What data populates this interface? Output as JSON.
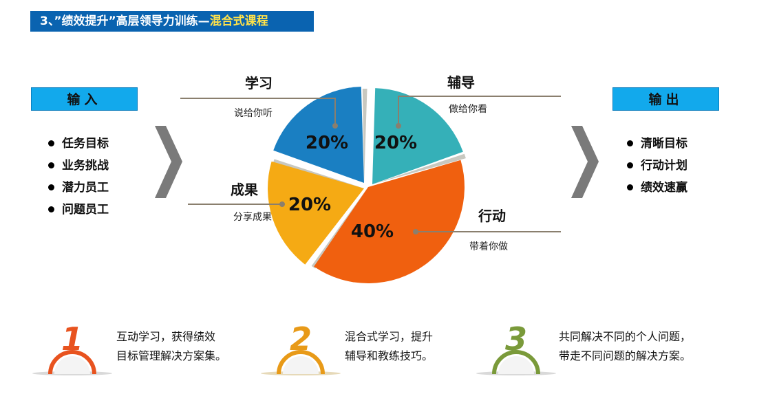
{
  "title": {
    "prefix": "3、”绩效提升”高层领导力训练—",
    "highlight": "混合式课程"
  },
  "input": {
    "label": "输入",
    "items": [
      "任务目标",
      "业务挑战",
      "潜力员工",
      "问题员工"
    ]
  },
  "output": {
    "label": "输出",
    "items": [
      "清晰目标",
      "行动计划",
      "绩效速赢"
    ]
  },
  "chart_data": {
    "type": "pie",
    "slices": [
      {
        "label": "辅导",
        "sub": "做给你看",
        "value": 20,
        "pct": "20%",
        "color": "#35b0b8"
      },
      {
        "label": "行动",
        "sub": "带着你做",
        "value": 40,
        "pct": "40%",
        "color": "#f0600f"
      },
      {
        "label": "成果",
        "sub": "分享成果",
        "value": 20,
        "pct": "20%",
        "color": "#f5aa14"
      },
      {
        "label": "学习",
        "sub": "说给你听",
        "value": 20,
        "pct": "20%",
        "color": "#1a7fc2"
      }
    ]
  },
  "bottom": [
    {
      "num": "1",
      "color": "#e8531f",
      "line1": "互动学习，获得绩效",
      "line2": "目标管理解决方案集。"
    },
    {
      "num": "2",
      "color": "#e89a18",
      "line1": "混合式学习，提升",
      "line2": "辅导和教练技巧。"
    },
    {
      "num": "3",
      "color": "#7a9a3a",
      "line1": "共同解决不同的个人问题，",
      "line2": "带走不同问题的解决方案。"
    }
  ]
}
